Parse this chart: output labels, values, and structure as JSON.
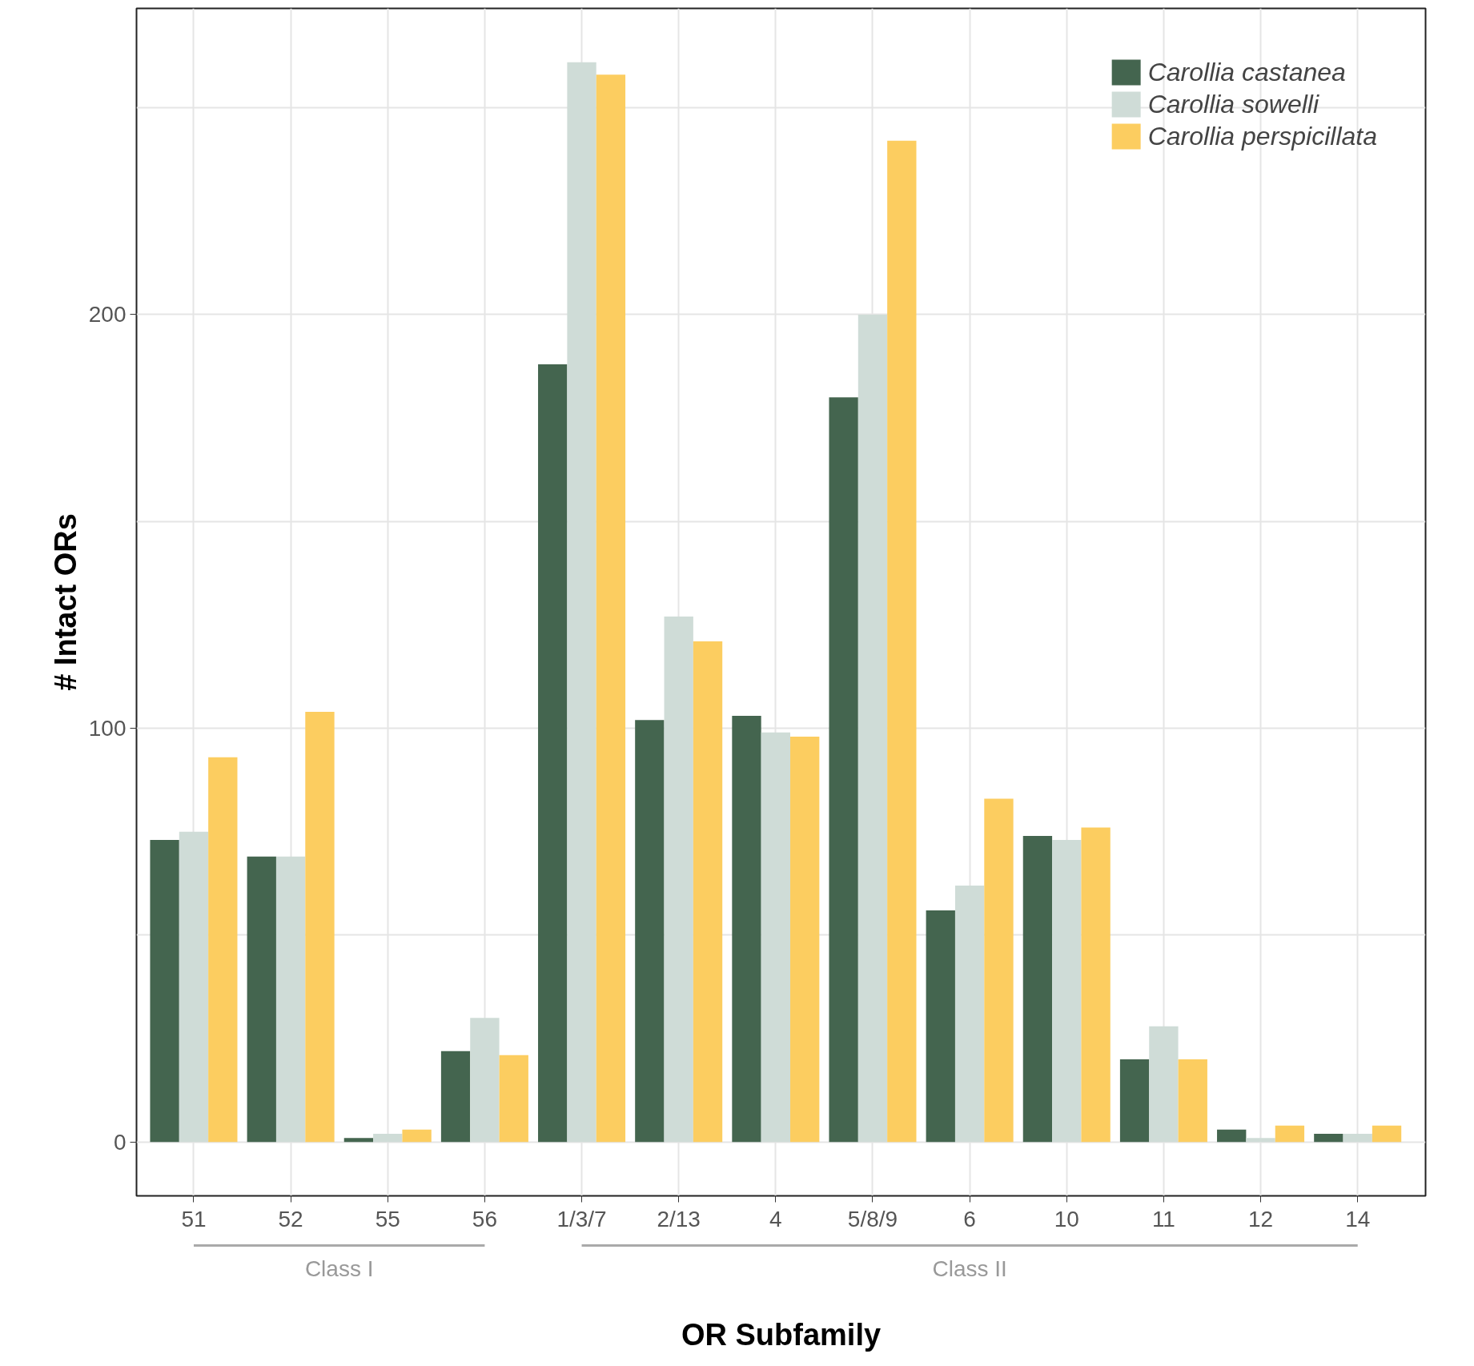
{
  "chart_data": {
    "type": "bar",
    "xlabel": "OR Subfamily",
    "ylabel": "# Intact ORs",
    "categories": [
      "51",
      "52",
      "55",
      "56",
      "1/3/7",
      "2/13",
      "4",
      "5/8/9",
      "6",
      "10",
      "11",
      "12",
      "14"
    ],
    "series": [
      {
        "name": "Carollia castanea",
        "color": "#44654f",
        "values": [
          73,
          69,
          1,
          22,
          188,
          102,
          103,
          180,
          56,
          74,
          20,
          3,
          2
        ]
      },
      {
        "name": "Carollia sowelli",
        "color": "#cfdcd7",
        "values": [
          75,
          69,
          2,
          30,
          261,
          127,
          99,
          200,
          62,
          73,
          28,
          1,
          2
        ]
      },
      {
        "name": "Carollia perspicillata",
        "color": "#fccd60",
        "values": [
          93,
          104,
          3,
          21,
          258,
          121,
          98,
          242,
          83,
          76,
          20,
          4,
          4
        ]
      }
    ],
    "ylim": [
      -13,
      274
    ],
    "yticks": [
      0,
      {
        "value": 50,
        "label": null
      },
      100,
      {
        "value": 150,
        "label": null
      },
      200,
      {
        "value": 250,
        "label": null
      }
    ],
    "grid": true,
    "legend": "top right",
    "annotations": [
      "Class I",
      "Class II"
    ]
  }
}
